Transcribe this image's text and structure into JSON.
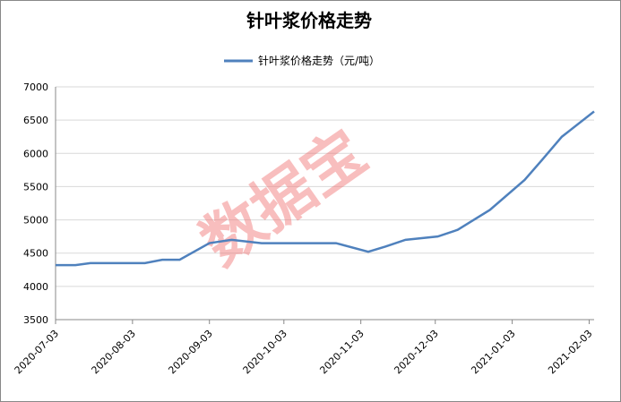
{
  "chart_data": {
    "type": "line",
    "title": "针叶浆价格走势",
    "watermark": "数据宝",
    "x": [
      "2020-07-03",
      "2020-07-11",
      "2020-07-17",
      "2020-08-08",
      "2020-08-15",
      "2020-08-22",
      "2020-09-03",
      "2020-09-12",
      "2020-09-24",
      "2020-10-24",
      "2020-11-06",
      "2020-11-13",
      "2020-11-21",
      "2020-12-04",
      "2020-12-12",
      "2020-12-25",
      "2021-01-08",
      "2021-01-15",
      "2021-01-23",
      "2021-02-05"
    ],
    "series": [
      {
        "name": "针叶浆价格走势（元/吨）",
        "color": "#4f81bd",
        "values": [
          4320,
          4320,
          4350,
          4350,
          4400,
          4400,
          4650,
          4700,
          4650,
          4650,
          4520,
          4600,
          4700,
          4750,
          4850,
          5150,
          5600,
          5900,
          6250,
          6630
        ]
      }
    ],
    "xlim": [
      "2020-07-03",
      "2021-02-05"
    ],
    "xticks": [
      "2020-07-03",
      "2020-08-03",
      "2020-09-03",
      "2020-10-03",
      "2020-11-03",
      "2020-12-03",
      "2021-01-03",
      "2021-02-03"
    ],
    "ylim": [
      3500,
      7000
    ],
    "yticks": [
      3500,
      4000,
      4500,
      5000,
      5500,
      6000,
      6500,
      7000
    ],
    "grid": true
  }
}
